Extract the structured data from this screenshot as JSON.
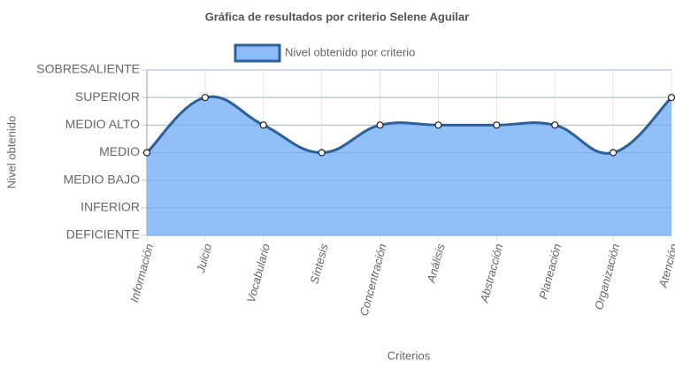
{
  "chart_data": {
    "type": "line",
    "title": "Gráfica de resultados por criterio Selene Aguilar",
    "x_label": "Criterios",
    "y_label": "Nivel obtenido",
    "categories": [
      "Información",
      "Juicio",
      "Vocabulario",
      "Síntesis",
      "Concentración",
      "Análisis",
      "Abstracción",
      "Planeación",
      "Organización",
      "Atención"
    ],
    "series": [
      {
        "name": "Nivel obtenido por criterio",
        "color": "#2c5f9e",
        "fill_color": "#8bbcf7",
        "values": [
          3,
          5,
          4,
          3,
          4,
          4,
          4,
          4,
          3,
          5
        ]
      }
    ],
    "ylim": [
      0,
      6
    ],
    "yticks": [
      {
        "value": 0,
        "label": "DEFICIENTE"
      },
      {
        "value": 1,
        "label": "INFERIOR"
      },
      {
        "value": 2,
        "label": "MEDIO BAJO"
      },
      {
        "value": 3,
        "label": "MEDIO"
      },
      {
        "value": 4,
        "label": "MEDIO ALTO"
      },
      {
        "value": 5,
        "label": "SUPERIOR"
      },
      {
        "value": 6,
        "label": "SOBRESALIENTE"
      }
    ],
    "grid": true,
    "legend": "top"
  }
}
